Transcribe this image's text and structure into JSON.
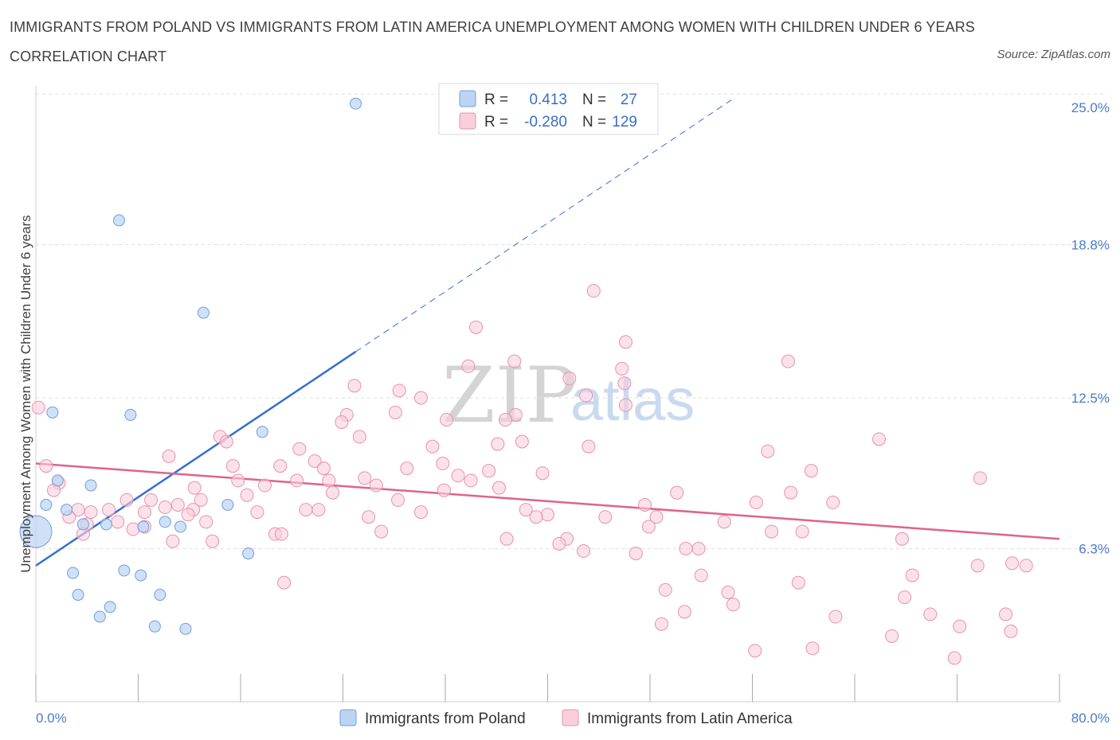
{
  "title": "IMMIGRANTS FROM POLAND VS IMMIGRANTS FROM LATIN AMERICA UNEMPLOYMENT AMONG WOMEN WITH CHILDREN UNDER 6 YEARS CORRELATION CHART",
  "source": "Source: ZipAtlas.com",
  "watermark": {
    "zip": "ZIP",
    "atlas": "atlas"
  },
  "legend": {
    "rows": [
      {
        "r_label": "R =",
        "r_value": "0.413",
        "n_label": "N =",
        "n_value": "27"
      },
      {
        "r_label": "R =",
        "r_value": "-0.280",
        "n_label": "N =",
        "n_value": "129"
      }
    ]
  },
  "colors": {
    "poland_fill": "#bcd4f3",
    "poland_stroke": "#6e9fdc",
    "poland_line": "#3370cc",
    "latam_fill": "#f9cfdc",
    "latam_stroke": "#e891ae",
    "latam_line": "#e0628d",
    "tick_label": "#4a7cc7",
    "grid": "#dedede"
  },
  "chart_data": {
    "type": "scatter",
    "title": "IMMIGRANTS FROM POLAND VS IMMIGRANTS FROM LATIN AMERICA UNEMPLOYMENT AMONG WOMEN WITH CHILDREN UNDER 6 YEARS CORRELATION CHART",
    "xlabel": "",
    "ylabel": "Unemployment Among Women with Children Under 6 years",
    "xlim": [
      0,
      80
    ],
    "ylim": [
      0,
      25.6
    ],
    "x_tick_labels": [
      "0.0%",
      "80.0%"
    ],
    "y_ticks": [
      6.3,
      12.5,
      18.8,
      25.0
    ],
    "y_tick_labels": [
      "6.3%",
      "12.5%",
      "18.8%",
      "25.0%"
    ],
    "grid": "horizontal dashed",
    "legend_position": "top-center",
    "series": [
      {
        "name": "Immigrants from Poland",
        "trend": {
          "x0": 0,
          "y0": 5.6,
          "x1": 25.0,
          "y1": 14.4,
          "dashed_to_x": 54.5,
          "dashed_to_y": 24.8
        },
        "points": [
          [
            25.0,
            24.6
          ],
          [
            6.5,
            19.8
          ],
          [
            13.1,
            16.0
          ],
          [
            1.3,
            11.9
          ],
          [
            7.4,
            11.8
          ],
          [
            17.7,
            11.1
          ],
          [
            1.7,
            9.1
          ],
          [
            4.3,
            8.9
          ],
          [
            0.8,
            8.1
          ],
          [
            2.4,
            7.9
          ],
          [
            15.0,
            8.1
          ],
          [
            10.1,
            7.4
          ],
          [
            8.4,
            7.2
          ],
          [
            11.3,
            7.2
          ],
          [
            3.7,
            7.3
          ],
          [
            5.5,
            7.3
          ],
          [
            0.0,
            7.0
          ],
          [
            16.6,
            6.1
          ],
          [
            2.9,
            5.3
          ],
          [
            6.9,
            5.4
          ],
          [
            8.2,
            5.2
          ],
          [
            3.3,
            4.4
          ],
          [
            9.7,
            4.4
          ],
          [
            5.8,
            3.9
          ],
          [
            5.0,
            3.5
          ],
          [
            9.3,
            3.1
          ],
          [
            11.7,
            3.0
          ]
        ],
        "point_radius": [
          7,
          7,
          7,
          7,
          7,
          7,
          7,
          7,
          7,
          7,
          7,
          7,
          7,
          7,
          7,
          7,
          20,
          7,
          7,
          7,
          7,
          7,
          7,
          7,
          7,
          7,
          7
        ]
      },
      {
        "name": "Immigrants from Latin America",
        "trend": {
          "x0": 0,
          "y0": 9.8,
          "x1": 80,
          "y1": 6.7
        },
        "points": [
          [
            43.6,
            16.9
          ],
          [
            34.4,
            15.4
          ],
          [
            46.1,
            14.8
          ],
          [
            58.8,
            14.0
          ],
          [
            37.4,
            14.0
          ],
          [
            33.8,
            13.8
          ],
          [
            45.8,
            13.7
          ],
          [
            41.7,
            13.3
          ],
          [
            46.0,
            13.1
          ],
          [
            24.9,
            13.0
          ],
          [
            28.4,
            12.8
          ],
          [
            43.0,
            12.6
          ],
          [
            30.1,
            12.5
          ],
          [
            46.1,
            12.2
          ],
          [
            0.2,
            12.1
          ],
          [
            24.3,
            11.8
          ],
          [
            28.1,
            11.9
          ],
          [
            37.5,
            11.8
          ],
          [
            32.1,
            11.6
          ],
          [
            36.7,
            11.6
          ],
          [
            23.9,
            11.5
          ],
          [
            14.4,
            10.9
          ],
          [
            25.3,
            10.9
          ],
          [
            14.9,
            10.7
          ],
          [
            65.9,
            10.8
          ],
          [
            38.0,
            10.7
          ],
          [
            36.1,
            10.6
          ],
          [
            31.0,
            10.5
          ],
          [
            43.2,
            10.5
          ],
          [
            20.6,
            10.4
          ],
          [
            10.4,
            10.1
          ],
          [
            21.8,
            9.9
          ],
          [
            0.8,
            9.7
          ],
          [
            19.1,
            9.7
          ],
          [
            15.4,
            9.7
          ],
          [
            31.8,
            9.8
          ],
          [
            22.5,
            9.6
          ],
          [
            29.0,
            9.6
          ],
          [
            35.4,
            9.5
          ],
          [
            60.6,
            9.5
          ],
          [
            39.6,
            9.4
          ],
          [
            33.0,
            9.3
          ],
          [
            73.8,
            9.2
          ],
          [
            20.4,
            9.1
          ],
          [
            25.7,
            9.2
          ],
          [
            22.9,
            9.1
          ],
          [
            15.8,
            9.1
          ],
          [
            34.0,
            9.1
          ],
          [
            1.8,
            9.0
          ],
          [
            26.6,
            8.9
          ],
          [
            17.9,
            8.9
          ],
          [
            36.2,
            8.8
          ],
          [
            12.4,
            8.8
          ],
          [
            1.4,
            8.7
          ],
          [
            31.9,
            8.7
          ],
          [
            23.2,
            8.6
          ],
          [
            50.1,
            8.6
          ],
          [
            59.0,
            8.6
          ],
          [
            16.5,
            8.5
          ],
          [
            7.1,
            8.3
          ],
          [
            28.3,
            8.3
          ],
          [
            9.0,
            8.3
          ],
          [
            12.9,
            8.3
          ],
          [
            56.3,
            8.2
          ],
          [
            47.6,
            8.1
          ],
          [
            11.1,
            8.1
          ],
          [
            10.1,
            8.0
          ],
          [
            12.3,
            7.9
          ],
          [
            21.1,
            7.9
          ],
          [
            22.1,
            7.9
          ],
          [
            5.7,
            7.9
          ],
          [
            3.3,
            7.9
          ],
          [
            30.1,
            7.8
          ],
          [
            17.3,
            7.8
          ],
          [
            4.3,
            7.8
          ],
          [
            38.3,
            7.9
          ],
          [
            40.0,
            7.7
          ],
          [
            2.6,
            7.6
          ],
          [
            11.9,
            7.7
          ],
          [
            39.1,
            7.6
          ],
          [
            48.5,
            7.6
          ],
          [
            53.8,
            7.4
          ],
          [
            13.3,
            7.4
          ],
          [
            6.4,
            7.4
          ],
          [
            4.0,
            7.3
          ],
          [
            47.9,
            7.2
          ],
          [
            8.5,
            7.2
          ],
          [
            7.6,
            7.1
          ],
          [
            27.0,
            7.0
          ],
          [
            57.5,
            7.0
          ],
          [
            59.9,
            7.0
          ],
          [
            18.7,
            6.9
          ],
          [
            19.2,
            6.9
          ],
          [
            3.7,
            6.9
          ],
          [
            36.8,
            6.7
          ],
          [
            41.5,
            6.7
          ],
          [
            67.7,
            6.7
          ],
          [
            10.7,
            6.6
          ],
          [
            13.8,
            6.6
          ],
          [
            40.9,
            6.5
          ],
          [
            50.8,
            6.3
          ],
          [
            51.8,
            6.3
          ],
          [
            42.8,
            6.2
          ],
          [
            46.9,
            6.1
          ],
          [
            73.6,
            5.6
          ],
          [
            76.3,
            5.7
          ],
          [
            77.4,
            5.6
          ],
          [
            52.0,
            5.2
          ],
          [
            68.5,
            5.2
          ],
          [
            59.6,
            4.9
          ],
          [
            49.2,
            4.6
          ],
          [
            54.1,
            4.5
          ],
          [
            67.9,
            4.3
          ],
          [
            54.5,
            4.0
          ],
          [
            50.7,
            3.7
          ],
          [
            62.5,
            3.5
          ],
          [
            48.9,
            3.2
          ],
          [
            69.9,
            3.6
          ],
          [
            72.2,
            3.1
          ],
          [
            75.8,
            3.6
          ],
          [
            66.9,
            2.7
          ],
          [
            76.2,
            2.9
          ],
          [
            60.7,
            2.2
          ],
          [
            56.2,
            2.1
          ],
          [
            71.8,
            1.8
          ],
          [
            19.4,
            4.9
          ],
          [
            8.5,
            7.8
          ],
          [
            26.0,
            7.6
          ],
          [
            62.3,
            8.2
          ],
          [
            44.5,
            7.6
          ],
          [
            57.2,
            10.3
          ]
        ],
        "point_radius": 8
      }
    ]
  },
  "bottom_legend": [
    "Immigrants from Poland",
    "Immigrants from Latin America"
  ]
}
